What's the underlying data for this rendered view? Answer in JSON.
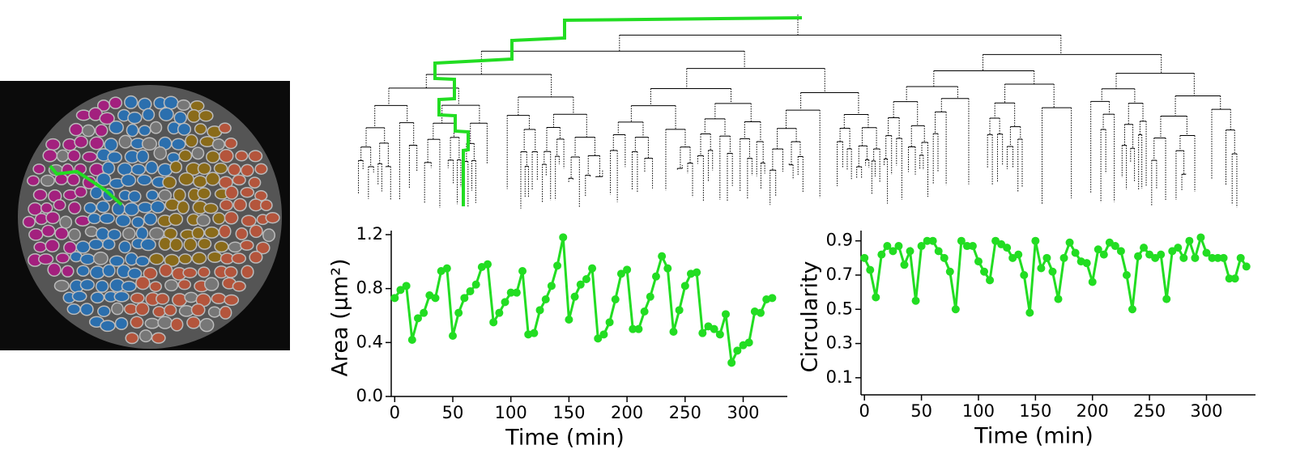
{
  "chart_data": [
    {
      "type": "line",
      "ylabel": "Area (μm²)",
      "xlabel": "Time (min)",
      "color": "#22dd22",
      "x": [
        0,
        5,
        10,
        15,
        20,
        25,
        30,
        35,
        40,
        45,
        50,
        55,
        60,
        65,
        70,
        75,
        80,
        85,
        90,
        95,
        100,
        105,
        110,
        115,
        120,
        125,
        130,
        135,
        140,
        145,
        150,
        155,
        160,
        165,
        170,
        175,
        180,
        185,
        190,
        195,
        200,
        205,
        210,
        215,
        220,
        225,
        230,
        235,
        240,
        245,
        250,
        255,
        260,
        265,
        270,
        275,
        280,
        285,
        290,
        295,
        300,
        305,
        310,
        315,
        320,
        325
      ],
      "values": [
        0.73,
        0.79,
        0.82,
        0.42,
        0.58,
        0.62,
        0.75,
        0.73,
        0.93,
        0.95,
        0.45,
        0.62,
        0.73,
        0.78,
        0.83,
        0.96,
        0.98,
        0.55,
        0.62,
        0.7,
        0.77,
        0.77,
        0.93,
        0.46,
        0.47,
        0.64,
        0.72,
        0.82,
        0.97,
        1.18,
        0.57,
        0.74,
        0.83,
        0.87,
        0.95,
        0.43,
        0.46,
        0.55,
        0.72,
        0.91,
        0.94,
        0.5,
        0.5,
        0.63,
        0.74,
        0.89,
        1.04,
        0.95,
        0.48,
        0.64,
        0.82,
        0.91,
        0.92,
        0.47,
        0.52,
        0.5,
        0.46,
        0.61,
        0.25,
        0.34,
        0.38,
        0.4,
        0.63,
        0.62,
        0.72,
        0.73
      ],
      "xlim": [
        -3,
        338
      ],
      "xticks": [
        0,
        50,
        100,
        150,
        200,
        250,
        300
      ],
      "ylim": [
        0,
        1.23
      ],
      "yticks": [
        {
          "value": 0,
          "label": "0.0"
        },
        0.4,
        0.8,
        1.2
      ]
    },
    {
      "type": "line",
      "ylabel": "Circularity",
      "xlabel": "Time (min)",
      "color": "#22dd22",
      "x": [
        0,
        5,
        10,
        15,
        20,
        25,
        30,
        35,
        40,
        45,
        50,
        55,
        60,
        65,
        70,
        75,
        80,
        85,
        90,
        95,
        100,
        105,
        110,
        115,
        120,
        125,
        130,
        135,
        140,
        145,
        150,
        155,
        160,
        165,
        170,
        175,
        180,
        185,
        190,
        195,
        200,
        205,
        210,
        215,
        220,
        225,
        230,
        235,
        240,
        245,
        250,
        255,
        260,
        265,
        270,
        275,
        280,
        285,
        290,
        295,
        300,
        305,
        310,
        315,
        320,
        325,
        330,
        335
      ],
      "values": [
        0.8,
        0.73,
        0.57,
        0.82,
        0.87,
        0.84,
        0.87,
        0.76,
        0.84,
        0.55,
        0.87,
        0.9,
        0.9,
        0.84,
        0.8,
        0.72,
        0.5,
        0.9,
        0.87,
        0.87,
        0.78,
        0.72,
        0.67,
        0.9,
        0.88,
        0.86,
        0.8,
        0.82,
        0.7,
        0.48,
        0.9,
        0.74,
        0.8,
        0.72,
        0.56,
        0.8,
        0.89,
        0.83,
        0.78,
        0.77,
        0.66,
        0.85,
        0.82,
        0.89,
        0.87,
        0.84,
        0.7,
        0.5,
        0.81,
        0.86,
        0.82,
        0.8,
        0.82,
        0.56,
        0.84,
        0.86,
        0.8,
        0.9,
        0.8,
        0.92,
        0.83,
        0.8,
        0.8,
        0.8,
        0.68,
        0.68,
        0.8,
        0.75
      ],
      "xlim": [
        -3,
        343
      ],
      "xticks": [
        0,
        50,
        100,
        150,
        200,
        250,
        300
      ],
      "ylim": [
        0,
        0.96
      ],
      "yticks": [
        0.1,
        0.3,
        0.5,
        0.7,
        0.9
      ]
    }
  ]
}
